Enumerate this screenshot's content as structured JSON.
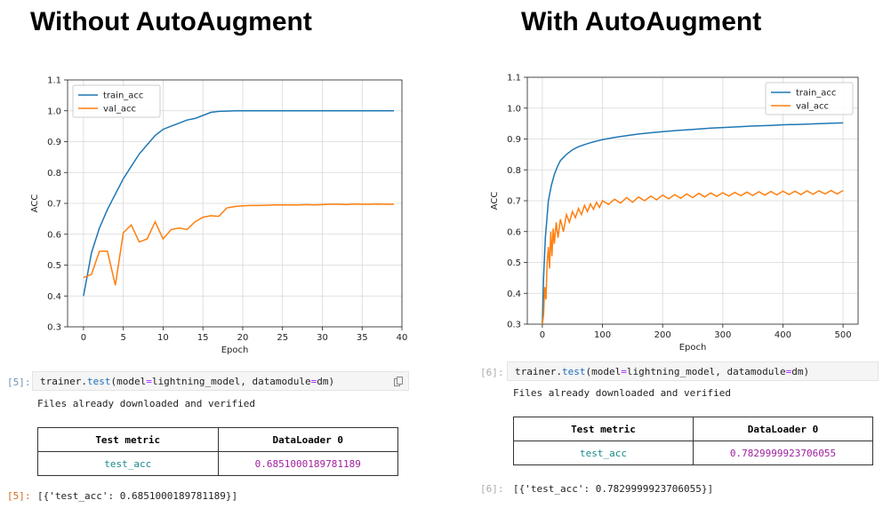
{
  "left": {
    "heading": "Without AutoAugment",
    "cell_prompt": "[5]:",
    "code": {
      "obj": "trainer.",
      "fn": "test",
      "rest1": "(model",
      "eq1": "=",
      "rest2": "lightning_model, datamodule",
      "eq2": "=",
      "rest3": "dm)"
    },
    "output_line": "Files already downloaded and verified",
    "table": {
      "col1": "Test metric",
      "col2": "DataLoader 0",
      "metric": "test_acc",
      "value": "0.6851000189781189"
    },
    "result_prompt": "[5]:",
    "result": "[{'test_acc': 0.6851000189781189}]"
  },
  "right": {
    "heading": "With AutoAugment",
    "cell_prompt": "[6]:",
    "code": {
      "obj": "trainer.",
      "fn": "test",
      "rest1": "(model",
      "eq1": "=",
      "rest2": "lightning_model, datamodule",
      "eq2": "=",
      "rest3": "dm)"
    },
    "output_line": "Files already downloaded and verified",
    "table": {
      "col1": "Test metric",
      "col2": "DataLoader 0",
      "metric": "test_acc",
      "value": "0.7829999923706055"
    },
    "result_prompt": "[6]:",
    "result": "[{'test_acc': 0.7829999923706055}]"
  },
  "chart_data": [
    {
      "type": "line",
      "xlabel": "Epoch",
      "ylabel": "ACC",
      "xlim": [
        -2,
        40
      ],
      "ylim": [
        0.3,
        1.1
      ],
      "xticks": [
        0,
        5,
        10,
        15,
        20,
        25,
        30,
        35,
        40
      ],
      "yticks": [
        0.3,
        0.4,
        0.5,
        0.6,
        0.7,
        0.8,
        0.9,
        1.0,
        1.1
      ],
      "grid": true,
      "legend": "top-left",
      "series": [
        {
          "name": "train_acc",
          "color": "#1f77b4",
          "x": [
            0,
            1,
            2,
            3,
            4,
            5,
            6,
            7,
            8,
            9,
            10,
            11,
            12,
            13,
            14,
            15,
            16,
            17,
            18,
            19,
            20,
            21,
            22,
            23,
            24,
            25,
            26,
            27,
            28,
            29,
            30,
            31,
            32,
            33,
            34,
            35,
            36,
            37,
            38,
            39
          ],
          "values": [
            0.4,
            0.54,
            0.62,
            0.68,
            0.73,
            0.78,
            0.82,
            0.86,
            0.89,
            0.92,
            0.94,
            0.95,
            0.96,
            0.97,
            0.975,
            0.985,
            0.995,
            0.998,
            0.999,
            1.0,
            1.0,
            1.0,
            1.0,
            1.0,
            1.0,
            1.0,
            1.0,
            1.0,
            1.0,
            1.0,
            1.0,
            1.0,
            1.0,
            1.0,
            1.0,
            1.0,
            1.0,
            1.0,
            1.0,
            1.0
          ]
        },
        {
          "name": "val_acc",
          "color": "#ff7f0e",
          "x": [
            0,
            1,
            2,
            3,
            4,
            5,
            6,
            7,
            8,
            9,
            10,
            11,
            12,
            13,
            14,
            15,
            16,
            17,
            18,
            19,
            20,
            21,
            22,
            23,
            24,
            25,
            26,
            27,
            28,
            29,
            30,
            31,
            32,
            33,
            34,
            35,
            36,
            37,
            38,
            39
          ],
          "values": [
            0.46,
            0.47,
            0.545,
            0.545,
            0.435,
            0.605,
            0.63,
            0.575,
            0.585,
            0.64,
            0.585,
            0.615,
            0.62,
            0.615,
            0.64,
            0.655,
            0.66,
            0.658,
            0.685,
            0.69,
            0.692,
            0.693,
            0.693,
            0.694,
            0.695,
            0.695,
            0.695,
            0.695,
            0.696,
            0.695,
            0.696,
            0.697,
            0.697,
            0.696,
            0.698,
            0.697,
            0.697,
            0.698,
            0.697,
            0.697
          ]
        }
      ]
    },
    {
      "type": "line",
      "xlabel": "Epoch",
      "ylabel": "ACC",
      "xlim": [
        -25,
        525
      ],
      "ylim": [
        0.3,
        1.1
      ],
      "xticks": [
        0,
        100,
        200,
        300,
        400,
        500
      ],
      "yticks": [
        0.3,
        0.4,
        0.5,
        0.6,
        0.7,
        0.8,
        0.9,
        1.0,
        1.1
      ],
      "grid": true,
      "legend": "top-right",
      "series": [
        {
          "name": "train_acc",
          "color": "#1f77b4",
          "x": [
            0,
            2,
            5,
            8,
            10,
            15,
            20,
            25,
            30,
            40,
            50,
            60,
            70,
            80,
            90,
            100,
            120,
            140,
            160,
            180,
            200,
            220,
            250,
            280,
            300,
            330,
            350,
            380,
            400,
            420,
            450,
            480,
            500
          ],
          "values": [
            0.3,
            0.45,
            0.58,
            0.65,
            0.7,
            0.75,
            0.785,
            0.81,
            0.83,
            0.85,
            0.865,
            0.875,
            0.882,
            0.888,
            0.893,
            0.898,
            0.905,
            0.911,
            0.916,
            0.92,
            0.924,
            0.927,
            0.931,
            0.935,
            0.937,
            0.94,
            0.942,
            0.944,
            0.946,
            0.947,
            0.949,
            0.951,
            0.952
          ]
        },
        {
          "name": "val_acc",
          "color": "#ff7f0e",
          "x": [
            0,
            2,
            4,
            6,
            8,
            10,
            12,
            14,
            16,
            18,
            20,
            23,
            26,
            30,
            35,
            40,
            45,
            50,
            55,
            60,
            65,
            70,
            75,
            80,
            85,
            90,
            95,
            100,
            110,
            120,
            130,
            140,
            150,
            160,
            170,
            180,
            190,
            200,
            210,
            220,
            230,
            240,
            250,
            260,
            270,
            280,
            290,
            300,
            310,
            320,
            330,
            340,
            350,
            360,
            370,
            380,
            390,
            400,
            410,
            420,
            430,
            440,
            450,
            460,
            470,
            480,
            490,
            500
          ],
          "values": [
            0.3,
            0.33,
            0.42,
            0.38,
            0.5,
            0.55,
            0.48,
            0.6,
            0.52,
            0.61,
            0.56,
            0.63,
            0.58,
            0.64,
            0.6,
            0.655,
            0.63,
            0.665,
            0.645,
            0.675,
            0.655,
            0.685,
            0.665,
            0.69,
            0.672,
            0.695,
            0.678,
            0.7,
            0.688,
            0.705,
            0.692,
            0.71,
            0.695,
            0.712,
            0.7,
            0.715,
            0.703,
            0.718,
            0.706,
            0.72,
            0.708,
            0.722,
            0.71,
            0.724,
            0.712,
            0.725,
            0.714,
            0.726,
            0.715,
            0.727,
            0.716,
            0.728,
            0.717,
            0.729,
            0.718,
            0.73,
            0.719,
            0.731,
            0.72,
            0.731,
            0.72,
            0.732,
            0.721,
            0.732,
            0.722,
            0.733,
            0.722,
            0.733
          ]
        }
      ]
    }
  ]
}
